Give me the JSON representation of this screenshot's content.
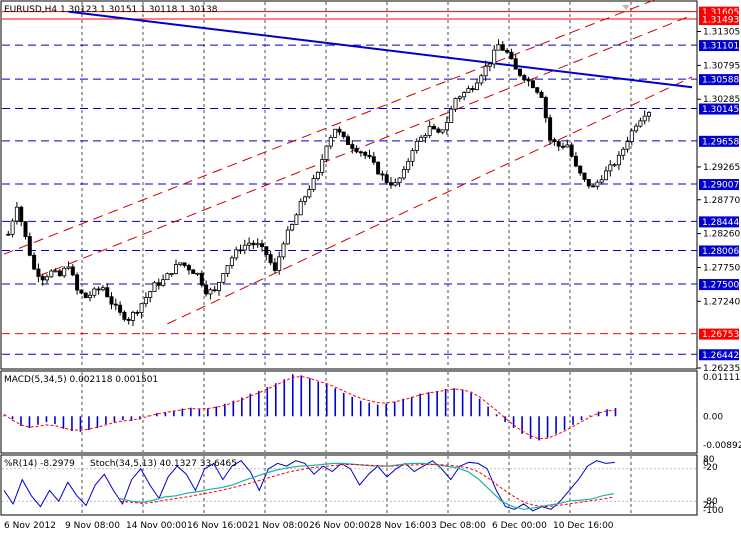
{
  "main_header": "EURUSD,H4  1.30123 1.30151 1.30118 1.30138",
  "macd_header": "MACD(5,34,5) 0.002118 0.001501",
  "wpr_header": "%R(14) -8.2979",
  "stoch_header": "Stoch(34,5,13) 40.1327 33.6465",
  "price_ticks": [
    "1.31305",
    "1.30795",
    "1.30285",
    "1.29775",
    "1.29265",
    "1.28770",
    "1.28260",
    "1.27750",
    "1.27240",
    "1.26730",
    "1.26235"
  ],
  "level_labels": [
    {
      "text": "1.31605",
      "color": "#ff0000",
      "value": 1.31605
    },
    {
      "text": "1.31493",
      "color": "#ff0000",
      "value": 1.31493
    },
    {
      "text": "1.31101",
      "color": "#0000cc",
      "value": 1.31101
    },
    {
      "text": "1.30588",
      "color": "#0000cc",
      "value": 1.30588
    },
    {
      "text": "1.30145",
      "color": "#0000cc",
      "value": 1.30145
    },
    {
      "text": "1.29658",
      "color": "#0000cc",
      "value": 1.29658
    },
    {
      "text": "1.29007",
      "color": "#0000cc",
      "value": 1.29007
    },
    {
      "text": "1.28444",
      "color": "#0000cc",
      "value": 1.28444
    },
    {
      "text": "1.28006",
      "color": "#0000cc",
      "value": 1.28006
    },
    {
      "text": "1.27500",
      "color": "#0000cc",
      "value": 1.275
    },
    {
      "text": "1.26753",
      "color": "#ff0000",
      "value": 1.26753
    },
    {
      "text": "1.26442",
      "color": "#0000cc",
      "value": 1.26442
    }
  ],
  "macd_ticks": [
    "0.011115",
    "0.00",
    "-0.00892"
  ],
  "osc_ticks": [
    "80",
    "0",
    "-20",
    "-80",
    "20",
    "-100"
  ],
  "time_labels": [
    "6 Nov 2012",
    "9 Nov 08:00",
    "14 Nov 00:00",
    "16 Nov 16:00",
    "21 Nov 08:00",
    "26 Nov 00:00",
    "28 Nov 16:00",
    "3 Dec 08:00",
    "6 Dec 00:00",
    "10 Dec 16:00"
  ],
  "colors": {
    "bull_candle": "#ffffff",
    "bear_candle": "#000000",
    "support_resistance": "#0000cc",
    "key_level": "#ff0000",
    "channel": "#cc0000",
    "trendline": "#0000cc",
    "macd_hist": "#0000cc",
    "macd_signal": "#ff0000",
    "wpr": "#0000cc",
    "stoch_main": "#20b2aa",
    "stoch_signal": "#ff0000"
  },
  "chart_data": {
    "type": "candlestick",
    "symbol": "EURUSD",
    "timeframe": "H4",
    "last_bar": {
      "open": 1.30123,
      "high": 1.30151,
      "low": 1.30118,
      "close": 1.30138
    },
    "ylim": [
      1.26235,
      1.3175
    ],
    "close_path": [
      [
        0,
        1.2825
      ],
      [
        2,
        1.287
      ],
      [
        4,
        1.282
      ],
      [
        6,
        1.2772
      ],
      [
        8,
        1.276
      ],
      [
        10,
        1.2768
      ],
      [
        12,
        1.2762
      ],
      [
        14,
        1.278
      ],
      [
        16,
        1.274
      ],
      [
        18,
        1.273
      ],
      [
        20,
        1.2738
      ],
      [
        22,
        1.2745
      ],
      [
        24,
        1.2722
      ],
      [
        26,
        1.2705
      ],
      [
        28,
        1.2698
      ],
      [
        30,
        1.2712
      ],
      [
        32,
        1.273
      ],
      [
        34,
        1.2748
      ],
      [
        36,
        1.2755
      ],
      [
        38,
        1.277
      ],
      [
        40,
        1.2782
      ],
      [
        42,
        1.2774
      ],
      [
        44,
        1.2765
      ],
      [
        46,
        1.274
      ],
      [
        48,
        1.2738
      ],
      [
        50,
        1.277
      ],
      [
        52,
        1.279
      ],
      [
        54,
        1.2805
      ],
      [
        56,
        1.2812
      ],
      [
        58,
        1.2808
      ],
      [
        60,
        1.2795
      ],
      [
        62,
        1.2768
      ],
      [
        64,
        1.2815
      ],
      [
        66,
        1.2838
      ],
      [
        68,
        1.287
      ],
      [
        70,
        1.2895
      ],
      [
        72,
        1.2915
      ],
      [
        74,
        1.2962
      ],
      [
        76,
        1.2985
      ],
      [
        78,
        1.2968
      ],
      [
        80,
        1.2958
      ],
      [
        82,
        1.295
      ],
      [
        84,
        1.2938
      ],
      [
        86,
        1.292
      ],
      [
        88,
        1.2905
      ],
      [
        90,
        1.29
      ],
      [
        92,
        1.2918
      ],
      [
        94,
        1.2955
      ],
      [
        96,
        1.297
      ],
      [
        98,
        1.2985
      ],
      [
        100,
        1.2975
      ],
      [
        102,
        1.2995
      ],
      [
        104,
        1.303
      ],
      [
        106,
        1.3038
      ],
      [
        108,
        1.3048
      ],
      [
        110,
        1.3068
      ],
      [
        112,
        1.3085
      ],
      [
        114,
        1.311
      ],
      [
        116,
        1.3098
      ],
      [
        118,
        1.3072
      ],
      [
        120,
        1.3062
      ],
      [
        122,
        1.305
      ],
      [
        124,
        1.3035
      ],
      [
        126,
        1.2968
      ],
      [
        128,
        1.2958
      ],
      [
        130,
        1.296
      ],
      [
        132,
        1.2925
      ],
      [
        134,
        1.2905
      ],
      [
        136,
        1.2895
      ],
      [
        138,
        1.2912
      ],
      [
        140,
        1.2925
      ],
      [
        142,
        1.294
      ],
      [
        144,
        1.2968
      ],
      [
        146,
        1.2992
      ],
      [
        148,
        1.3008
      ],
      [
        150,
        1.3014
      ]
    ],
    "channel_lines": [
      {
        "style": "dashed",
        "color": "#cc0000",
        "points": [
          [
            0,
            1.2795
          ],
          [
            152,
            1.318
          ]
        ]
      },
      {
        "style": "dashed",
        "color": "#cc0000",
        "points": [
          [
            8,
            1.2762
          ],
          [
            160,
            1.3155
          ]
        ]
      },
      {
        "style": "dashed",
        "color": "#cc0000",
        "points": [
          [
            38,
            1.269
          ],
          [
            160,
            1.3062
          ]
        ]
      }
    ],
    "trendline": {
      "color": "#0000cc",
      "points": [
        [
          15,
          1.31605
        ],
        [
          160,
          1.30465
        ]
      ]
    },
    "macd": {
      "ylim": [
        -0.00892,
        0.011115
      ],
      "histogram": [
        0.0002,
        -0.0008,
        -0.0025,
        -0.003,
        -0.0022,
        -0.0015,
        -0.002,
        -0.0032,
        -0.0038,
        -0.004,
        -0.0035,
        -0.003,
        -0.002,
        -0.0015,
        -0.001,
        -0.0012,
        -0.0008,
        0.0002,
        0.0008,
        0.001,
        0.0015,
        0.002,
        0.0022,
        0.0018,
        0.002,
        0.0025,
        0.0032,
        0.004,
        0.0048,
        0.0058,
        0.0065,
        0.0075,
        0.0085,
        0.0095,
        0.0108,
        0.0105,
        0.0098,
        0.0088,
        0.0082,
        0.0072,
        0.006,
        0.005,
        0.004,
        0.0035,
        0.003,
        0.0032,
        0.0038,
        0.0045,
        0.005,
        0.0058,
        0.0062,
        0.0065,
        0.007,
        0.0072,
        0.0068,
        0.006,
        0.0045,
        0.0025,
        0.0005,
        -0.0015,
        -0.003,
        -0.0045,
        -0.0058,
        -0.0062,
        -0.0055,
        -0.0045,
        -0.0035,
        -0.0022,
        -0.001,
        0.0002,
        0.0012,
        0.0018,
        0.0021
      ],
      "signal": [
        0.0005,
        -0.001,
        -0.0022,
        -0.0028,
        -0.0026,
        -0.0022,
        -0.0024,
        -0.003,
        -0.0035,
        -0.0036,
        -0.0033,
        -0.0028,
        -0.0022,
        -0.0016,
        -0.0012,
        -0.001,
        -0.0006,
        0.0,
        0.0006,
        0.001,
        0.0013,
        0.0017,
        0.002,
        0.0019,
        0.002,
        0.0023,
        0.0028,
        0.0035,
        0.0042,
        0.0052,
        0.006,
        0.007,
        0.008,
        0.009,
        0.01,
        0.0102,
        0.0098,
        0.009,
        0.0084,
        0.0075,
        0.0065,
        0.0055,
        0.0046,
        0.004,
        0.0035,
        0.0034,
        0.0037,
        0.0042,
        0.0048,
        0.0055,
        0.006,
        0.0063,
        0.0067,
        0.007,
        0.0068,
        0.0062,
        0.005,
        0.0032,
        0.0015,
        -0.0005,
        -0.0022,
        -0.0038,
        -0.005,
        -0.0058,
        -0.0056,
        -0.0048,
        -0.0038,
        -0.0026,
        -0.0014,
        -0.0002,
        0.0008,
        0.0014,
        0.0015
      ]
    },
    "oscillators": {
      "ylim": [
        -100,
        0
      ],
      "wpr": [
        -60,
        -85,
        -40,
        -70,
        -90,
        -60,
        -80,
        -45,
        -70,
        -88,
        -50,
        -30,
        -60,
        -85,
        -40,
        -20,
        -50,
        -75,
        -35,
        -15,
        -30,
        -60,
        -20,
        -10,
        -40,
        -15,
        -5,
        -25,
        -60,
        -20,
        -10,
        -15,
        -5,
        -10,
        -30,
        -15,
        -25,
        -10,
        -20,
        -50,
        -30,
        -15,
        -35,
        -20,
        -10,
        -25,
        -15,
        -5,
        -20,
        -40,
        -15,
        -8,
        -10,
        -20,
        -60,
        -90,
        -95,
        -85,
        -98,
        -90,
        -95,
        -80,
        -60,
        -40,
        -15,
        -5,
        -10,
        -8
      ],
      "stoch_main": [
        -75,
        -80,
        -82,
        -78,
        -72,
        -70,
        -65,
        -62,
        -58,
        -55,
        -50,
        -42,
        -35,
        -28,
        -22,
        -18,
        -15,
        -14,
        -12,
        -10,
        -10,
        -12,
        -14,
        -15,
        -15,
        -12,
        -10,
        -10,
        -12,
        -15,
        -18,
        -25,
        -40,
        -60,
        -80,
        -90,
        -95,
        -92,
        -88,
        -85,
        -80,
        -78,
        -76,
        -70,
        -66
      ],
      "stoch_signal": [
        -80,
        -82,
        -84,
        -82,
        -78,
        -75,
        -72,
        -68,
        -64,
        -60,
        -55,
        -50,
        -44,
        -38,
        -32,
        -26,
        -22,
        -18,
        -16,
        -14,
        -12,
        -12,
        -13,
        -14,
        -15,
        -14,
        -13,
        -12,
        -12,
        -13,
        -15,
        -18,
        -26,
        -40,
        -56,
        -70,
        -82,
        -88,
        -90,
        -88,
        -85,
        -82,
        -79,
        -76,
        -72
      ]
    }
  }
}
